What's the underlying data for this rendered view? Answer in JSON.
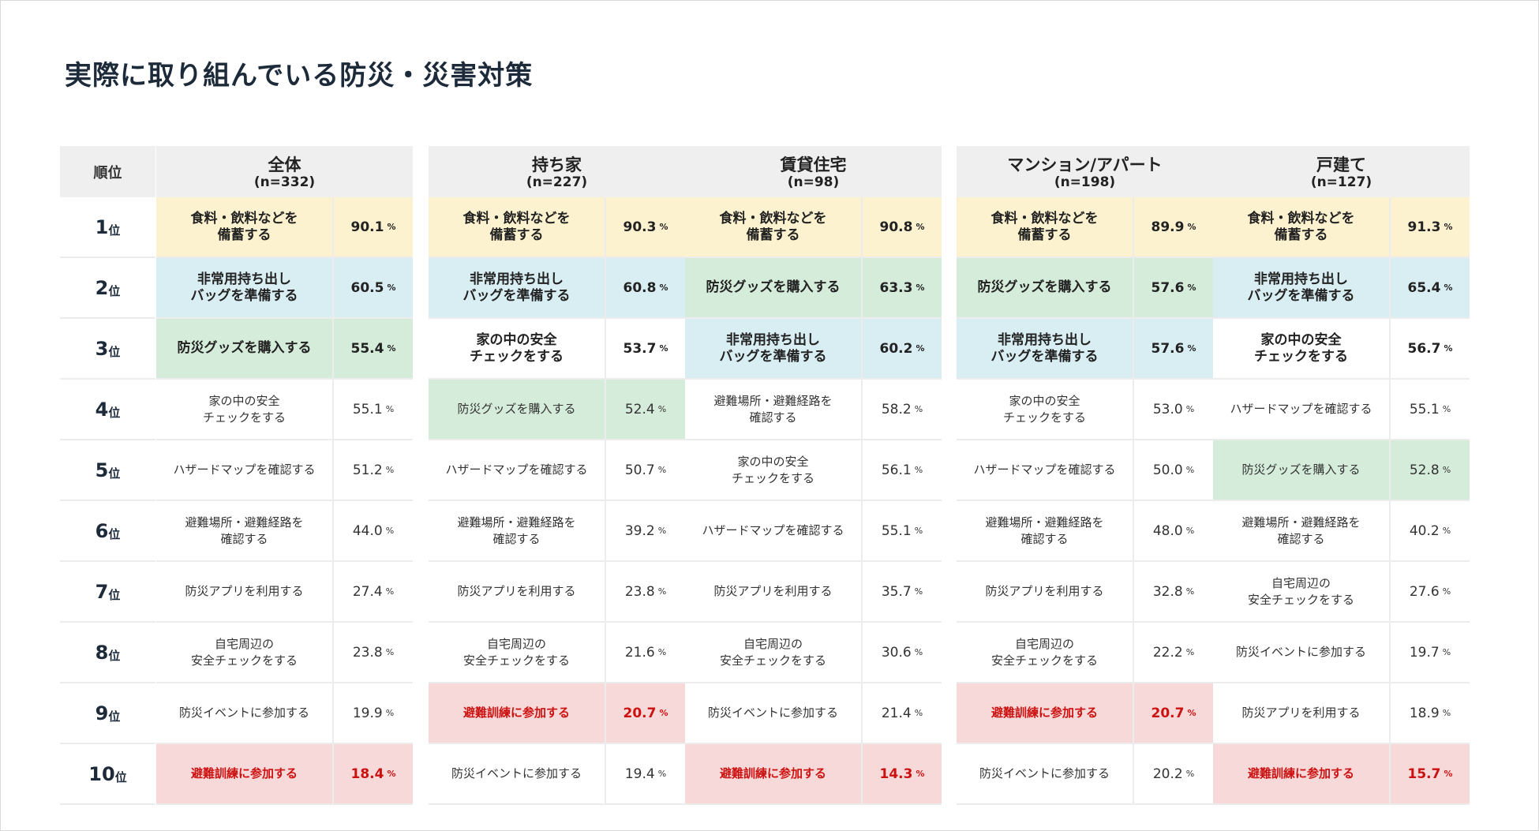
{
  "title": "実際に取り組んでいる防災・災害対策",
  "rank_header": "順位",
  "rank_unit": "位",
  "ranks": [
    "1",
    "2",
    "3",
    "4",
    "5",
    "6",
    "7",
    "8",
    "9",
    "10"
  ],
  "pct_unit": "%",
  "colors": {
    "yellow": "#fdf2cf",
    "blue": "#d9eef3",
    "green": "#d5ecda",
    "red": "#f7d9d9",
    "red_text": "#cc1111"
  },
  "segments": [
    {
      "name": "全体",
      "n": "(n=332)",
      "rows": [
        {
          "label": "食料・飲料などを\n備蓄する",
          "value": "90.1",
          "color": "yellow"
        },
        {
          "label": "非常用持ち出し\nバッグを準備する",
          "value": "60.5",
          "color": "blue"
        },
        {
          "label": "防災グッズを購入する",
          "value": "55.4",
          "color": "green"
        },
        {
          "label": "家の中の安全\nチェックをする",
          "value": "55.1",
          "color": "none"
        },
        {
          "label": "ハザードマップを確認する",
          "value": "51.2",
          "color": "none"
        },
        {
          "label": "避難場所・避難経路を\n確認する",
          "value": "44.0",
          "color": "none"
        },
        {
          "label": "防災アプリを利用する",
          "value": "27.4",
          "color": "none"
        },
        {
          "label": "自宅周辺の\n安全チェックをする",
          "value": "23.8",
          "color": "none"
        },
        {
          "label": "防災イベントに参加する",
          "value": "19.9",
          "color": "none"
        },
        {
          "label": "避難訓練に参加する",
          "value": "18.4",
          "color": "red"
        }
      ]
    },
    {
      "name": "持ち家",
      "n": "(n=227)",
      "rows": [
        {
          "label": "食料・飲料などを\n備蓄する",
          "value": "90.3",
          "color": "yellow"
        },
        {
          "label": "非常用持ち出し\nバッグを準備する",
          "value": "60.8",
          "color": "blue"
        },
        {
          "label": "家の中の安全\nチェックをする",
          "value": "53.7",
          "color": "none",
          "bold": true
        },
        {
          "label": "防災グッズを購入する",
          "value": "52.4",
          "color": "green",
          "bold": false
        },
        {
          "label": "ハザードマップを確認する",
          "value": "50.7",
          "color": "none"
        },
        {
          "label": "避難場所・避難経路を\n確認する",
          "value": "39.2",
          "color": "none"
        },
        {
          "label": "防災アプリを利用する",
          "value": "23.8",
          "color": "none"
        },
        {
          "label": "自宅周辺の\n安全チェックをする",
          "value": "21.6",
          "color": "none"
        },
        {
          "label": "避難訓練に参加する",
          "value": "20.7",
          "color": "red"
        },
        {
          "label": "防災イベントに参加する",
          "value": "19.4",
          "color": "none"
        }
      ]
    },
    {
      "name": "賃貸住宅",
      "n": "(n=98)",
      "rows": [
        {
          "label": "食料・飲料などを\n備蓄する",
          "value": "90.8",
          "color": "yellow"
        },
        {
          "label": "防災グッズを購入する",
          "value": "63.3",
          "color": "green"
        },
        {
          "label": "非常用持ち出し\nバッグを準備する",
          "value": "60.2",
          "color": "blue"
        },
        {
          "label": "避難場所・避難経路を\n確認する",
          "value": "58.2",
          "color": "none"
        },
        {
          "label": "家の中の安全\nチェックをする",
          "value": "56.1",
          "color": "none"
        },
        {
          "label": "ハザードマップを確認する",
          "value": "55.1",
          "color": "none"
        },
        {
          "label": "防災アプリを利用する",
          "value": "35.7",
          "color": "none"
        },
        {
          "label": "自宅周辺の\n安全チェックをする",
          "value": "30.6",
          "color": "none"
        },
        {
          "label": "防災イベントに参加する",
          "value": "21.4",
          "color": "none"
        },
        {
          "label": "避難訓練に参加する",
          "value": "14.3",
          "color": "red"
        }
      ]
    },
    {
      "name": "マンション/アパート",
      "n": "(n=198)",
      "rows": [
        {
          "label": "食料・飲料などを\n備蓄する",
          "value": "89.9",
          "color": "yellow"
        },
        {
          "label": "防災グッズを購入する",
          "value": "57.6",
          "color": "green"
        },
        {
          "label": "非常用持ち出し\nバッグを準備する",
          "value": "57.6",
          "color": "blue"
        },
        {
          "label": "家の中の安全\nチェックをする",
          "value": "53.0",
          "color": "none"
        },
        {
          "label": "ハザードマップを確認する",
          "value": "50.0",
          "color": "none"
        },
        {
          "label": "避難場所・避難経路を\n確認する",
          "value": "48.0",
          "color": "none"
        },
        {
          "label": "防災アプリを利用する",
          "value": "32.8",
          "color": "none"
        },
        {
          "label": "自宅周辺の\n安全チェックをする",
          "value": "22.2",
          "color": "none"
        },
        {
          "label": "避難訓練に参加する",
          "value": "20.7",
          "color": "red"
        },
        {
          "label": "防災イベントに参加する",
          "value": "20.2",
          "color": "none"
        }
      ]
    },
    {
      "name": "戸建て",
      "n": "(n=127)",
      "rows": [
        {
          "label": "食料・飲料などを\n備蓄する",
          "value": "91.3",
          "color": "yellow"
        },
        {
          "label": "非常用持ち出し\nバッグを準備する",
          "value": "65.4",
          "color": "blue"
        },
        {
          "label": "家の中の安全\nチェックをする",
          "value": "56.7",
          "color": "none",
          "bold": true
        },
        {
          "label": "ハザードマップを確認する",
          "value": "55.1",
          "color": "none"
        },
        {
          "label": "防災グッズを購入する",
          "value": "52.8",
          "color": "green",
          "bold": false
        },
        {
          "label": "避難場所・避難経路を\n確認する",
          "value": "40.2",
          "color": "none"
        },
        {
          "label": "自宅周辺の\n安全チェックをする",
          "value": "27.6",
          "color": "none"
        },
        {
          "label": "防災イベントに参加する",
          "value": "19.7",
          "color": "none"
        },
        {
          "label": "防災アプリを利用する",
          "value": "18.9",
          "color": "none"
        },
        {
          "label": "避難訓練に参加する",
          "value": "15.7",
          "color": "red"
        }
      ]
    }
  ]
}
